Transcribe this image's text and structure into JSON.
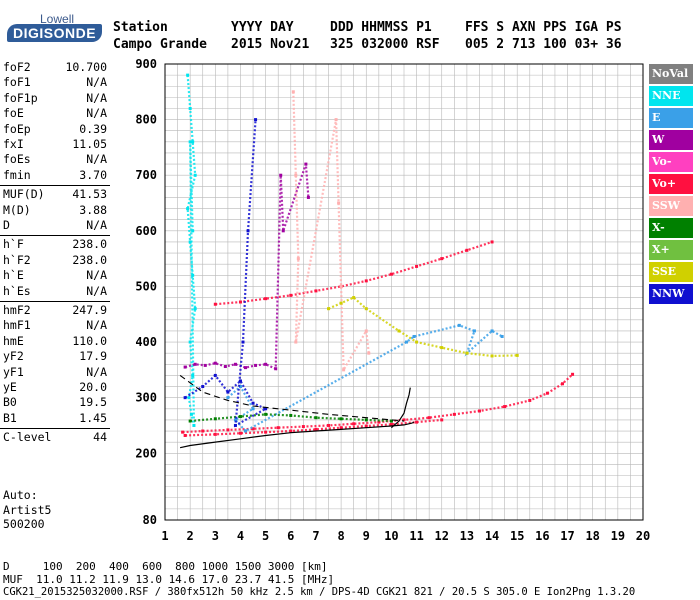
{
  "logo": {
    "top": "Lowell",
    "main": "DIGISONDE"
  },
  "header": {
    "labels": [
      "Station",
      "YYYY DAY",
      "DDD HHMMSS P1",
      "FFS S AXN PPS IGA PS"
    ],
    "values": [
      "Campo Grande",
      "2015 Nov21",
      "325 032000 RSF",
      "005 2 713 100 03+ 36"
    ]
  },
  "params": [
    {
      "group": 1,
      "label": "foF2",
      "value": "10.700"
    },
    {
      "group": 1,
      "label": "foF1",
      "value": "N/A"
    },
    {
      "group": 1,
      "label": "foF1p",
      "value": "N/A"
    },
    {
      "group": 1,
      "label": "foE",
      "value": "N/A"
    },
    {
      "group": 1,
      "label": "foEp",
      "value": "0.39"
    },
    {
      "group": 1,
      "label": "fxI",
      "value": "11.05"
    },
    {
      "group": 1,
      "label": "foEs",
      "value": "N/A"
    },
    {
      "group": 1,
      "label": "fmin",
      "value": "3.70"
    },
    {
      "group": 2,
      "label": "MUF(D)",
      "value": "41.53"
    },
    {
      "group": 2,
      "label": "M(D)",
      "value": "3.88"
    },
    {
      "group": 2,
      "label": "D",
      "value": "N/A"
    },
    {
      "group": 3,
      "label": "h`F",
      "value": "238.0"
    },
    {
      "group": 3,
      "label": "h`F2",
      "value": "238.0"
    },
    {
      "group": 3,
      "label": "h`E",
      "value": "N/A"
    },
    {
      "group": 3,
      "label": "h`Es",
      "value": "N/A"
    },
    {
      "group": 4,
      "label": "hmF2",
      "value": "247.9"
    },
    {
      "group": 4,
      "label": "hmF1",
      "value": "N/A"
    },
    {
      "group": 4,
      "label": "hmE",
      "value": "110.0"
    },
    {
      "group": 4,
      "label": "yF2",
      "value": "17.9"
    },
    {
      "group": 4,
      "label": "yF1",
      "value": "N/A"
    },
    {
      "group": 4,
      "label": "yE",
      "value": "20.0"
    },
    {
      "group": 4,
      "label": "B0",
      "value": "19.5"
    },
    {
      "group": 4,
      "label": "B1",
      "value": "1.45"
    },
    {
      "group": 5,
      "label": "C-level",
      "value": "44"
    }
  ],
  "auto": [
    "Auto:",
    "Artist5",
    "500200"
  ],
  "legend": [
    {
      "label": "NoVal",
      "color": "#808080"
    },
    {
      "label": "NNE",
      "color": "#00e5ee"
    },
    {
      "label": "E",
      "color": "#3aa0e8"
    },
    {
      "label": "W",
      "color": "#a000a0"
    },
    {
      "label": "Vo-",
      "color": "#ff40c0"
    },
    {
      "label": "Vo+",
      "color": "#ff1040"
    },
    {
      "label": "SSW",
      "color": "#ffb0b0"
    },
    {
      "label": "X-",
      "color": "#008000"
    },
    {
      "label": "X+",
      "color": "#70c040"
    },
    {
      "label": "SSE",
      "color": "#d0d000"
    },
    {
      "label": "NNW",
      "color": "#1010d0"
    }
  ],
  "footer": {
    "line1": "D     100  200  400  600  800 1000 1500 3000 [km]",
    "line2": "MUF  11.0 11.2 11.9 13.0 14.6 17.0 23.7 41.5 [MHz]",
    "line3": "CGK21_2015325032000.RSF / 380fx512h 50 kHz 2.5 km / DPS-4D CGK21 821 / 20.5 S 305.0 E Ion2Png 1.3.20"
  },
  "chart_data": {
    "type": "scatter",
    "xlim": [
      1,
      20
    ],
    "ylim": [
      80,
      900
    ],
    "x_ticks": [
      1,
      2,
      3,
      4,
      5,
      6,
      7,
      8,
      9,
      10,
      11,
      12,
      13,
      14,
      15,
      16,
      17,
      18,
      19,
      20
    ],
    "y_ticks": [
      80,
      200,
      300,
      400,
      500,
      600,
      700,
      800,
      900
    ],
    "grid": true,
    "series": [
      {
        "name": "Vo+",
        "color": "#ff1040",
        "x": [
          1.7,
          2.5,
          3.5,
          4.5,
          5.5,
          6.5,
          7.5,
          8.5,
          9.5,
          10.5,
          11.5,
          12.5,
          13.5,
          14.5,
          15.5,
          16.2,
          16.8,
          17.2
        ],
        "y": [
          238,
          240,
          242,
          244,
          246,
          248,
          250,
          253,
          256,
          260,
          264,
          270,
          276,
          284,
          295,
          308,
          325,
          342
        ]
      },
      {
        "name": "Vo+",
        "color": "#ff1040",
        "x": [
          1.8,
          3,
          4,
          5,
          6,
          7,
          8,
          9,
          10,
          11,
          12
        ],
        "y": [
          232,
          234,
          236,
          238,
          240,
          243,
          246,
          249,
          252,
          256,
          260
        ]
      },
      {
        "name": "Vo+",
        "color": "#ff1040",
        "x": [
          3,
          4,
          5,
          6,
          7,
          8,
          9,
          10,
          11,
          12,
          13,
          14
        ],
        "y": [
          468,
          472,
          478,
          484,
          492,
          500,
          510,
          522,
          536,
          550,
          565,
          580
        ]
      },
      {
        "name": "NNE",
        "color": "#00e5ee",
        "x": [
          1.9,
          2.0,
          2.1,
          2.2,
          1.9,
          2.0,
          2.1,
          2.2,
          2.0,
          2.1,
          1.95,
          2.05,
          2.15,
          2.0,
          2.1
        ],
        "y": [
          880,
          820,
          760,
          700,
          640,
          580,
          520,
          460,
          400,
          340,
          300,
          270,
          250,
          760,
          600
        ]
      },
      {
        "name": "E",
        "color": "#3aa0e8",
        "x": [
          3.5,
          4.0,
          4.5,
          3.8,
          4.2,
          10.6,
          10.9,
          12.7,
          13.3,
          13.0,
          14.0,
          14.4
        ],
        "y": [
          300,
          320,
          280,
          260,
          240,
          400,
          410,
          430,
          420,
          380,
          420,
          410
        ]
      },
      {
        "name": "W",
        "color": "#a000a0",
        "x": [
          1.8,
          2.2,
          2.6,
          3.0,
          3.4,
          3.8,
          4.2,
          4.6,
          5.0,
          5.4,
          5.6,
          5.7,
          6.6,
          6.7
        ],
        "y": [
          355,
          360,
          358,
          362,
          356,
          360,
          354,
          358,
          360,
          352,
          700,
          600,
          720,
          660
        ]
      },
      {
        "name": "SSW",
        "color": "#ffb0b0",
        "x": [
          6.1,
          6.2,
          6.3,
          6.2,
          7.8,
          7.9,
          8.0,
          8.1,
          9.0,
          9.1
        ],
        "y": [
          850,
          700,
          550,
          400,
          800,
          650,
          500,
          350,
          420,
          380
        ]
      },
      {
        "name": "X-",
        "color": "#008000",
        "x": [
          2,
          3,
          4,
          5,
          6,
          7,
          8,
          9,
          10
        ],
        "y": [
          258,
          262,
          266,
          270,
          268,
          264,
          262,
          260,
          258
        ]
      },
      {
        "name": "SSE",
        "color": "#d0d000",
        "x": [
          7.5,
          8.0,
          8.5,
          9.0,
          10.3,
          11.0,
          12.0,
          13.0,
          14.0,
          15.0
        ],
        "y": [
          460,
          470,
          480,
          460,
          420,
          400,
          390,
          380,
          375,
          376
        ]
      },
      {
        "name": "NNW",
        "color": "#1010d0",
        "x": [
          1.8,
          2.5,
          3.0,
          3.5,
          4.0,
          4.5,
          5.0,
          3.8,
          4.1,
          4.3,
          4.6
        ],
        "y": [
          300,
          320,
          340,
          310,
          330,
          290,
          280,
          250,
          400,
          600,
          800
        ]
      }
    ],
    "virtual_height_profile": {
      "x": [
        1.6,
        2,
        3,
        4,
        5,
        6,
        7,
        8,
        9,
        10,
        10.5,
        10.8,
        10.9
      ],
      "y": [
        210,
        214,
        220,
        226,
        232,
        237,
        240,
        243,
        246,
        249,
        251,
        254,
        256
      ]
    },
    "true_height_profile": {
      "x": [
        10.0,
        10.3,
        10.5,
        10.6,
        10.7,
        10.75
      ],
      "y": [
        246,
        258,
        272,
        290,
        305,
        318
      ]
    },
    "dashed_line": {
      "x": [
        1.6,
        2.5,
        3.5,
        4.5,
        5.5,
        6.5,
        7.5,
        8.5,
        9.5,
        10.5
      ],
      "y": [
        340,
        310,
        295,
        285,
        280,
        275,
        270,
        266,
        262,
        258
      ]
    }
  }
}
